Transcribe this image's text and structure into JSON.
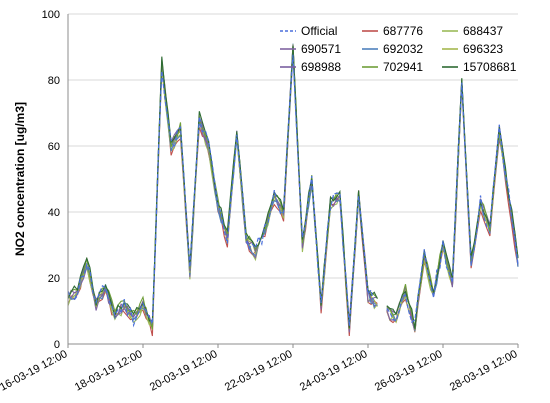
{
  "chart_data": {
    "type": "line",
    "ylabel": "NO2 concentration  [ug/m3]",
    "xlabel": "",
    "ylim": [
      0,
      100
    ],
    "yticks": [
      0,
      20,
      40,
      60,
      80,
      100
    ],
    "xlim": [
      "2019-03-16 12:00",
      "2019-03-28 12:00"
    ],
    "xtick_labels": [
      "16-03-19 12:00",
      "18-03-19 12:00",
      "20-03-19 12:00",
      "22-03-19 12:00",
      "24-03-19 12:00",
      "26-03-19 12:00",
      "28-03-19 12:00"
    ],
    "legend_position": "top-right",
    "grid": "horizontal",
    "series": [
      {
        "name": "Official",
        "color": "#4a6fdc",
        "dashed": true
      },
      {
        "name": "687776",
        "color": "#c0504d"
      },
      {
        "name": "688437",
        "color": "#9bbb59"
      },
      {
        "name": "690571",
        "color": "#8064a2"
      },
      {
        "name": "692032",
        "color": "#4f81bd"
      },
      {
        "name": "696323",
        "color": "#a5b84f"
      },
      {
        "name": "698988",
        "color": "#7a5fa0"
      },
      {
        "name": "702941",
        "color": "#6f9e3a"
      },
      {
        "name": "15708681",
        "color": "#2e6b34"
      }
    ],
    "base_profile": [
      [
        "2019-03-16 12:00",
        14
      ],
      [
        "2019-03-16 18:00",
        16
      ],
      [
        "2019-03-17 00:00",
        25
      ],
      [
        "2019-03-17 06:00",
        12
      ],
      [
        "2019-03-17 12:00",
        17
      ],
      [
        "2019-03-17 18:00",
        9
      ],
      [
        "2019-03-18 00:00",
        12
      ],
      [
        "2019-03-18 06:00",
        8
      ],
      [
        "2019-03-18 12:00",
        12
      ],
      [
        "2019-03-18 18:00",
        5
      ],
      [
        "2019-03-19 00:00",
        85
      ],
      [
        "2019-03-19 06:00",
        60
      ],
      [
        "2019-03-19 12:00",
        65
      ],
      [
        "2019-03-19 18:00",
        22
      ],
      [
        "2019-03-20 00:00",
        68
      ],
      [
        "2019-03-20 06:00",
        60
      ],
      [
        "2019-03-20 12:00",
        42
      ],
      [
        "2019-03-20 18:00",
        32
      ],
      [
        "2019-03-21 00:00",
        64
      ],
      [
        "2019-03-21 06:00",
        32
      ],
      [
        "2019-03-21 12:00",
        28
      ],
      [
        "2019-03-21 18:00",
        35
      ],
      [
        "2019-03-22 00:00",
        45
      ],
      [
        "2019-03-22 06:00",
        40
      ],
      [
        "2019-03-22 12:00",
        90
      ],
      [
        "2019-03-22 18:00",
        30
      ],
      [
        "2019-03-23 00:00",
        50
      ],
      [
        "2019-03-23 06:00",
        12
      ],
      [
        "2019-03-23 12:00",
        43
      ],
      [
        "2019-03-23 18:00",
        45
      ],
      [
        "2019-03-24 00:00",
        5
      ],
      [
        "2019-03-24 06:00",
        45
      ],
      [
        "2019-03-24 12:00",
        15
      ],
      [
        "2019-03-25 00:00",
        10
      ],
      [
        "2019-03-25 06:00",
        8
      ],
      [
        "2019-03-25 12:00",
        16
      ],
      [
        "2019-03-25 18:00",
        5
      ],
      [
        "2019-03-26 00:00",
        27
      ],
      [
        "2019-03-26 06:00",
        15
      ],
      [
        "2019-03-26 12:00",
        30
      ],
      [
        "2019-03-26 18:00",
        18
      ],
      [
        "2019-03-27 00:00",
        80
      ],
      [
        "2019-03-27 06:00",
        25
      ],
      [
        "2019-03-27 12:00",
        43
      ],
      [
        "2019-03-27 18:00",
        35
      ],
      [
        "2019-03-28 00:00",
        65
      ],
      [
        "2019-03-28 12:00",
        25
      ]
    ]
  }
}
